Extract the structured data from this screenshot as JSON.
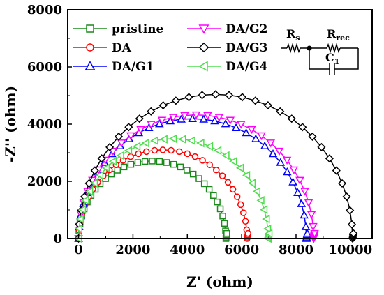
{
  "chart_data": {
    "type": "scatter",
    "title": "",
    "xlabel": "Z' (ohm)",
    "ylabel": "-Z'' (ohm)",
    "xlim": [
      -400,
      10800
    ],
    "ylim": [
      0,
      8000
    ],
    "xticks": [
      0,
      2000,
      4000,
      6000,
      8000,
      10000
    ],
    "yticks": [
      0,
      2000,
      4000,
      6000,
      8000
    ],
    "grid": false,
    "legend_position": "top-left (two columns)",
    "series": [
      {
        "name": "pristine",
        "marker": "square",
        "color": "#1a8a1a",
        "r_s": 0,
        "r_ct": 5420,
        "peak": [
          2710,
          2710
        ]
      },
      {
        "name": "DA",
        "marker": "circle",
        "color": "#ff0000",
        "r_s": 0,
        "r_ct": 6200,
        "peak": [
          3100,
          3100
        ]
      },
      {
        "name": "DA/G1",
        "marker": "triangle-up",
        "color": "#0000ff",
        "r_s": 0,
        "r_ct": 8380,
        "peak": [
          4190,
          4190
        ]
      },
      {
        "name": "DA/G2",
        "marker": "triangle-down",
        "color": "#ff00ff",
        "r_s": 0,
        "r_ct": 8650,
        "peak": [
          4325,
          4325
        ]
      },
      {
        "name": "DA/G3",
        "marker": "diamond",
        "color": "#000000",
        "r_s": 0,
        "r_ct": 10080,
        "peak": [
          5040,
          5040
        ]
      },
      {
        "name": "DA/G4",
        "marker": "triangle-left",
        "color": "#4ddd4d",
        "r_s": 0,
        "r_ct": 6980,
        "peak": [
          3490,
          3490
        ]
      }
    ],
    "inset_circuit": {
      "elements": [
        "R",
        "s",
        "R",
        "rec",
        "C",
        "1"
      ]
    }
  }
}
